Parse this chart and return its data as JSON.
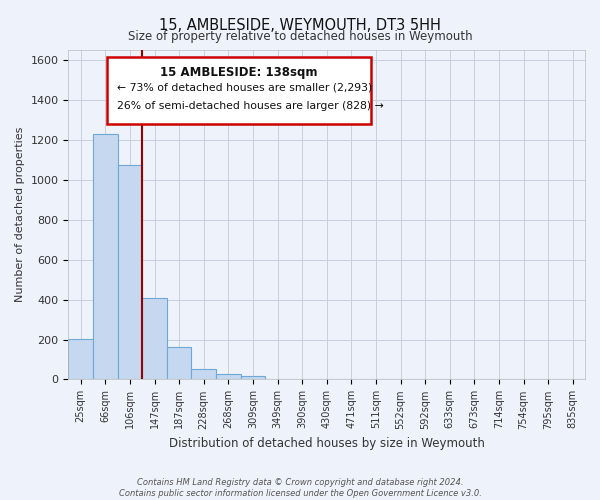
{
  "title": "15, AMBLESIDE, WEYMOUTH, DT3 5HH",
  "subtitle": "Size of property relative to detached houses in Weymouth",
  "xlabel": "Distribution of detached houses by size in Weymouth",
  "ylabel": "Number of detached properties",
  "bar_labels": [
    "25sqm",
    "66sqm",
    "106sqm",
    "147sqm",
    "187sqm",
    "228sqm",
    "268sqm",
    "309sqm",
    "349sqm",
    "390sqm",
    "430sqm",
    "471sqm",
    "511sqm",
    "552sqm",
    "592sqm",
    "633sqm",
    "673sqm",
    "714sqm",
    "754sqm",
    "795sqm",
    "835sqm"
  ],
  "bar_values": [
    205,
    1230,
    1075,
    410,
    160,
    52,
    25,
    15,
    0,
    0,
    0,
    0,
    0,
    0,
    0,
    0,
    0,
    0,
    0,
    0,
    0
  ],
  "bar_color": "#c5d8f0",
  "bar_edge_color": "#6fa8d4",
  "vline_color": "#990000",
  "ylim": [
    0,
    1650
  ],
  "yticks": [
    0,
    200,
    400,
    600,
    800,
    1000,
    1200,
    1400,
    1600
  ],
  "annotation_title": "15 AMBLESIDE: 138sqm",
  "annotation_line1": "← 73% of detached houses are smaller (2,293)",
  "annotation_line2": "26% of semi-detached houses are larger (828) →",
  "annotation_box_color": "#ffffff",
  "annotation_box_edge": "#cc0000",
  "footer_line1": "Contains HM Land Registry data © Crown copyright and database right 2024.",
  "footer_line2": "Contains public sector information licensed under the Open Government Licence v3.0.",
  "background_color": "#eef2fa",
  "plot_bg_color": "#eef2fa",
  "grid_color": "#c8d0e0"
}
